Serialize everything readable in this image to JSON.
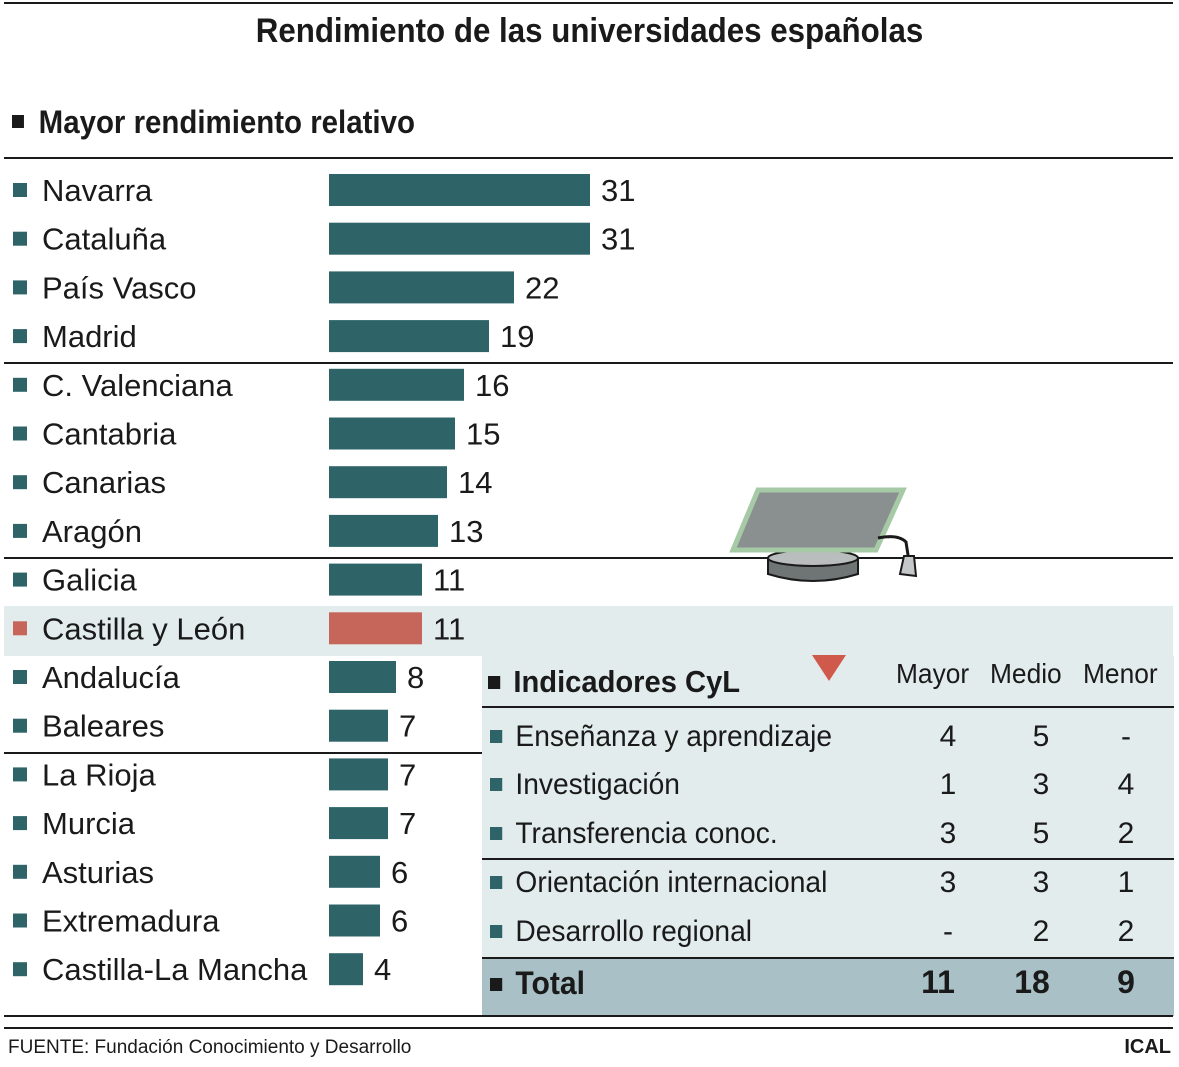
{
  "title": "Rendimiento de las universidades españolas",
  "section_title": "Mayor rendimiento relativo",
  "colors": {
    "bar": "#2e6468",
    "highlight_bar": "#c6665a",
    "highlight_band": "#e3ecec",
    "panel": "#e3ecec",
    "total_band": "#a9c1c6",
    "arrow": "#cf5a4b"
  },
  "chart_data": {
    "type": "bar",
    "orientation": "horizontal",
    "title": "Mayor rendimiento relativo",
    "categories": [
      "Navarra",
      "Cataluña",
      "País Vasco",
      "Madrid",
      "C. Valenciana",
      "Cantabria",
      "Canarias",
      "Aragón",
      "Galicia",
      "Castilla y León",
      "Andalucía",
      "Baleares",
      "La Rioja",
      "Murcia",
      "Asturias",
      "Extremadura",
      "Castilla-La Mancha"
    ],
    "values": [
      31,
      31,
      22,
      19,
      16,
      15,
      14,
      13,
      11,
      11,
      8,
      7,
      7,
      7,
      6,
      6,
      4
    ],
    "highlight": "Castilla y León",
    "xlim": [
      0,
      31
    ]
  },
  "indicators": {
    "title": "Indicadores CyL",
    "columns": [
      "Mayor",
      "Medio",
      "Menor"
    ],
    "rows": [
      {
        "label": "Enseñanza y aprendizaje",
        "mayor": "4",
        "medio": "5",
        "menor": "-"
      },
      {
        "label": "Investigación",
        "mayor": "1",
        "medio": "3",
        "menor": "4"
      },
      {
        "label": "Transferencia conoc.",
        "mayor": "3",
        "medio": "5",
        "menor": "2"
      },
      {
        "label": "Orientación internacional",
        "mayor": "3",
        "medio": "3",
        "menor": "1"
      },
      {
        "label": "Desarrollo regional",
        "mayor": "-",
        "medio": "2",
        "menor": "2"
      }
    ],
    "total": {
      "label": "Total",
      "mayor": "11",
      "medio": "18",
      "menor": "9"
    }
  },
  "footer": {
    "source": "FUENTE: Fundación Conocimiento y Desarrollo",
    "brand": "ICAL"
  },
  "icons": {
    "graduation": "graduation-cap-icon",
    "arrow": "down-arrow-icon"
  }
}
